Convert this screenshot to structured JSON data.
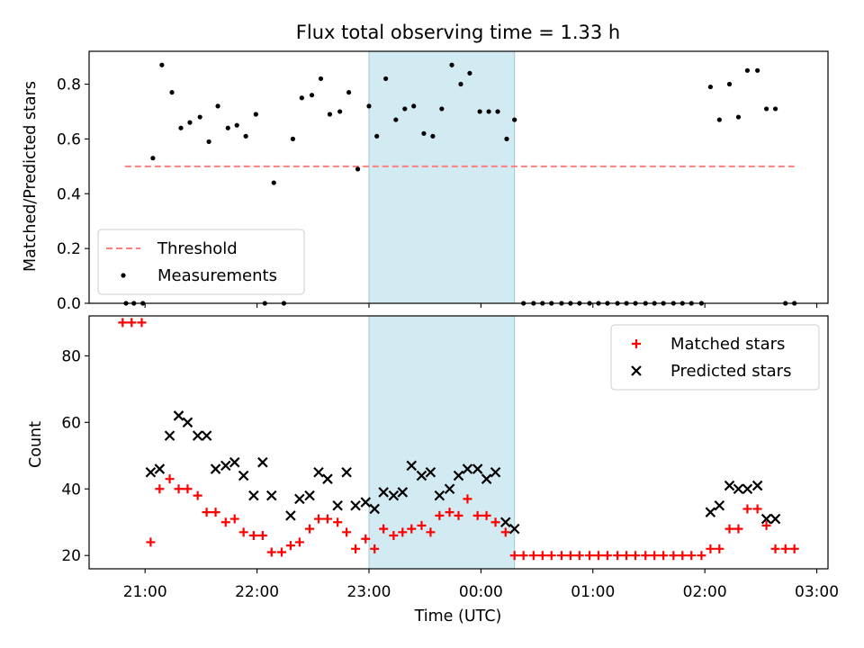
{
  "chart_data": {
    "title": "Flux total observing time = 1.33 h",
    "xlabel": "Time (UTC)",
    "x_unit": "hours after 00:00 UTC (negative = previous day)",
    "xlim": [
      -3.5,
      3.1
    ],
    "xticks": [
      -3,
      -2,
      -1,
      0,
      1,
      2,
      3
    ],
    "xtick_labels": [
      "21:00",
      "22:00",
      "23:00",
      "00:00",
      "01:00",
      "02:00",
      "03:00"
    ],
    "shaded_span": {
      "x": [
        -1.0,
        0.3
      ],
      "color": "#add8e6"
    },
    "panels": [
      {
        "type": "scatter",
        "ylabel": "Matched/Predicted stars",
        "ylim": [
          0,
          0.92
        ],
        "yticks": [
          0.0,
          0.2,
          0.4,
          0.6,
          0.8
        ],
        "ytick_labels": [
          "0.0",
          "0.2",
          "0.4",
          "0.6",
          "0.8"
        ],
        "legend_position": "lower-left",
        "threshold": {
          "name": "Threshold",
          "value": 0.5,
          "x": [
            -3.18,
            2.8
          ],
          "color": "#ff7f7f",
          "style": "dashed"
        },
        "series": [
          {
            "name": "Measurements",
            "marker": "dot",
            "color": "#000000",
            "x": [
              -3.17,
              -3.1,
              -3.02,
              -2.93,
              -2.85,
              -2.76,
              -2.68,
              -2.6,
              -2.51,
              -2.43,
              -2.35,
              -2.26,
              -2.18,
              -2.1,
              -2.01,
              -1.93,
              -1.85,
              -1.76,
              -1.68,
              -1.6,
              -1.51,
              -1.43,
              -1.35,
              -1.26,
              -1.18,
              -1.1,
              -1.0,
              -0.93,
              -0.85,
              -0.76,
              -0.68,
              -0.6,
              -0.51,
              -0.43,
              -0.35,
              -0.26,
              -0.18,
              -0.1,
              -0.01,
              0.07,
              0.15,
              0.23,
              0.3,
              0.38,
              0.47,
              0.55,
              0.63,
              0.72,
              0.8,
              0.88,
              0.97,
              1.05,
              1.13,
              1.22,
              1.3,
              1.38,
              1.47,
              1.55,
              1.63,
              1.72,
              1.8,
              1.88,
              1.97,
              2.05,
              2.13,
              2.22,
              2.3,
              2.38,
              2.47,
              2.55,
              2.63,
              2.72,
              2.8
            ],
            "y": [
              0.0,
              0.0,
              0.0,
              0.53,
              0.87,
              0.77,
              0.64,
              0.66,
              0.68,
              0.59,
              0.72,
              0.64,
              0.65,
              0.61,
              0.69,
              0.0,
              0.44,
              0.0,
              0.6,
              0.75,
              0.76,
              0.82,
              0.69,
              0.7,
              0.77,
              0.49,
              0.72,
              0.61,
              0.82,
              0.67,
              0.71,
              0.72,
              0.62,
              0.61,
              0.71,
              0.87,
              0.8,
              0.84,
              0.7,
              0.7,
              0.7,
              0.6,
              0.67,
              0.0,
              0.0,
              0.0,
              0.0,
              0.0,
              0.0,
              0.0,
              0.0,
              0.0,
              0.0,
              0.0,
              0.0,
              0.0,
              0.0,
              0.0,
              0.0,
              0.0,
              0.0,
              0.0,
              0.0,
              0.79,
              0.67,
              0.8,
              0.68,
              0.85,
              0.85,
              0.71,
              0.71,
              0.0,
              0.0
            ]
          }
        ]
      },
      {
        "type": "scatter",
        "ylabel": "Count",
        "ylim": [
          16,
          92
        ],
        "yticks": [
          20,
          40,
          60,
          80
        ],
        "ytick_labels": [
          "20",
          "40",
          "60",
          "80"
        ],
        "legend_position": "upper-right",
        "series": [
          {
            "name": "Matched stars",
            "marker": "plus",
            "color": "#ff0000",
            "x": [
              -3.2,
              -3.12,
              -3.03,
              -2.95,
              -2.87,
              -2.78,
              -2.7,
              -2.62,
              -2.53,
              -2.45,
              -2.37,
              -2.28,
              -2.2,
              -2.12,
              -2.03,
              -1.95,
              -1.87,
              -1.78,
              -1.7,
              -1.62,
              -1.53,
              -1.45,
              -1.37,
              -1.28,
              -1.2,
              -1.12,
              -1.03,
              -0.95,
              -0.87,
              -0.78,
              -0.7,
              -0.62,
              -0.53,
              -0.45,
              -0.37,
              -0.28,
              -0.2,
              -0.12,
              -0.03,
              0.05,
              0.13,
              0.22,
              0.3,
              0.38,
              0.47,
              0.55,
              0.63,
              0.72,
              0.8,
              0.88,
              0.97,
              1.05,
              1.13,
              1.22,
              1.3,
              1.38,
              1.47,
              1.55,
              1.63,
              1.72,
              1.8,
              1.88,
              1.97,
              2.05,
              2.13,
              2.22,
              2.3,
              2.38,
              2.47,
              2.55,
              2.63,
              2.72,
              2.8
            ],
            "y": [
              90,
              90,
              90,
              24,
              40,
              43,
              40,
              40,
              38,
              33,
              33,
              30,
              31,
              27,
              26,
              26,
              21,
              21,
              23,
              24,
              28,
              31,
              31,
              30,
              27,
              22,
              25,
              22,
              28,
              26,
              27,
              28,
              29,
              27,
              32,
              33,
              32,
              37,
              32,
              32,
              30,
              27,
              20,
              20,
              20,
              20,
              20,
              20,
              20,
              20,
              20,
              20,
              20,
              20,
              20,
              20,
              20,
              20,
              20,
              20,
              20,
              20,
              20,
              22,
              22,
              28,
              28,
              34,
              34,
              29,
              22,
              22,
              22
            ]
          },
          {
            "name": "Predicted stars",
            "marker": "x",
            "color": "#000000",
            "x": [
              -2.95,
              -2.87,
              -2.78,
              -2.7,
              -2.62,
              -2.53,
              -2.45,
              -2.37,
              -2.28,
              -2.2,
              -2.12,
              -2.03,
              -1.95,
              -1.87,
              -1.7,
              -1.62,
              -1.53,
              -1.45,
              -1.37,
              -1.28,
              -1.2,
              -1.12,
              -1.03,
              -0.95,
              -0.87,
              -0.78,
              -0.7,
              -0.62,
              -0.53,
              -0.45,
              -0.37,
              -0.28,
              -0.2,
              -0.12,
              -0.03,
              0.05,
              0.13,
              0.22,
              0.3,
              2.05,
              2.13,
              2.22,
              2.3,
              2.38,
              2.47,
              2.55,
              2.63
            ],
            "y": [
              45,
              46,
              56,
              62,
              60,
              56,
              56,
              46,
              47,
              48,
              44,
              38,
              48,
              38,
              32,
              37,
              38,
              45,
              43,
              35,
              45,
              35,
              36,
              34,
              39,
              38,
              39,
              47,
              44,
              45,
              38,
              40,
              44,
              46,
              46,
              43,
              45,
              30,
              28,
              33,
              35,
              41,
              40,
              40,
              41,
              31,
              31
            ]
          }
        ]
      }
    ]
  }
}
